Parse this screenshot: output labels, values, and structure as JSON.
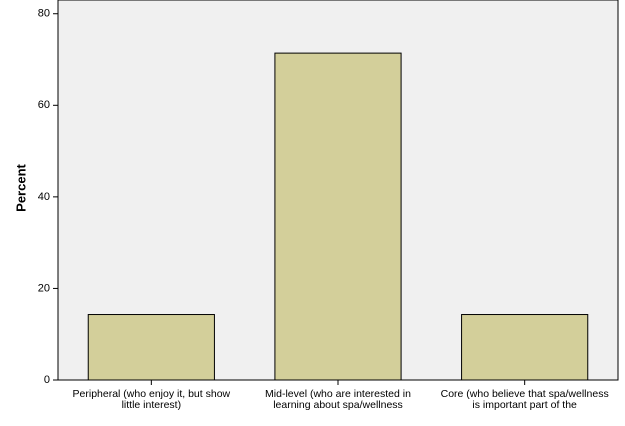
{
  "chart_data": {
    "type": "bar",
    "y_label": "Percent",
    "categories": [
      "Peripheral (who enjoy it, but show little interest)",
      "Mid-level (who are interested in learning about spa/wellness",
      "Core (who believe that spa/wellness is important part of the"
    ],
    "values": [
      14.3,
      71.4,
      14.3
    ],
    "color": "#d3cf9a",
    "ylim": [
      0,
      83
    ],
    "yticks": [
      0,
      20,
      40,
      60,
      80
    ],
    "grid": false
  }
}
